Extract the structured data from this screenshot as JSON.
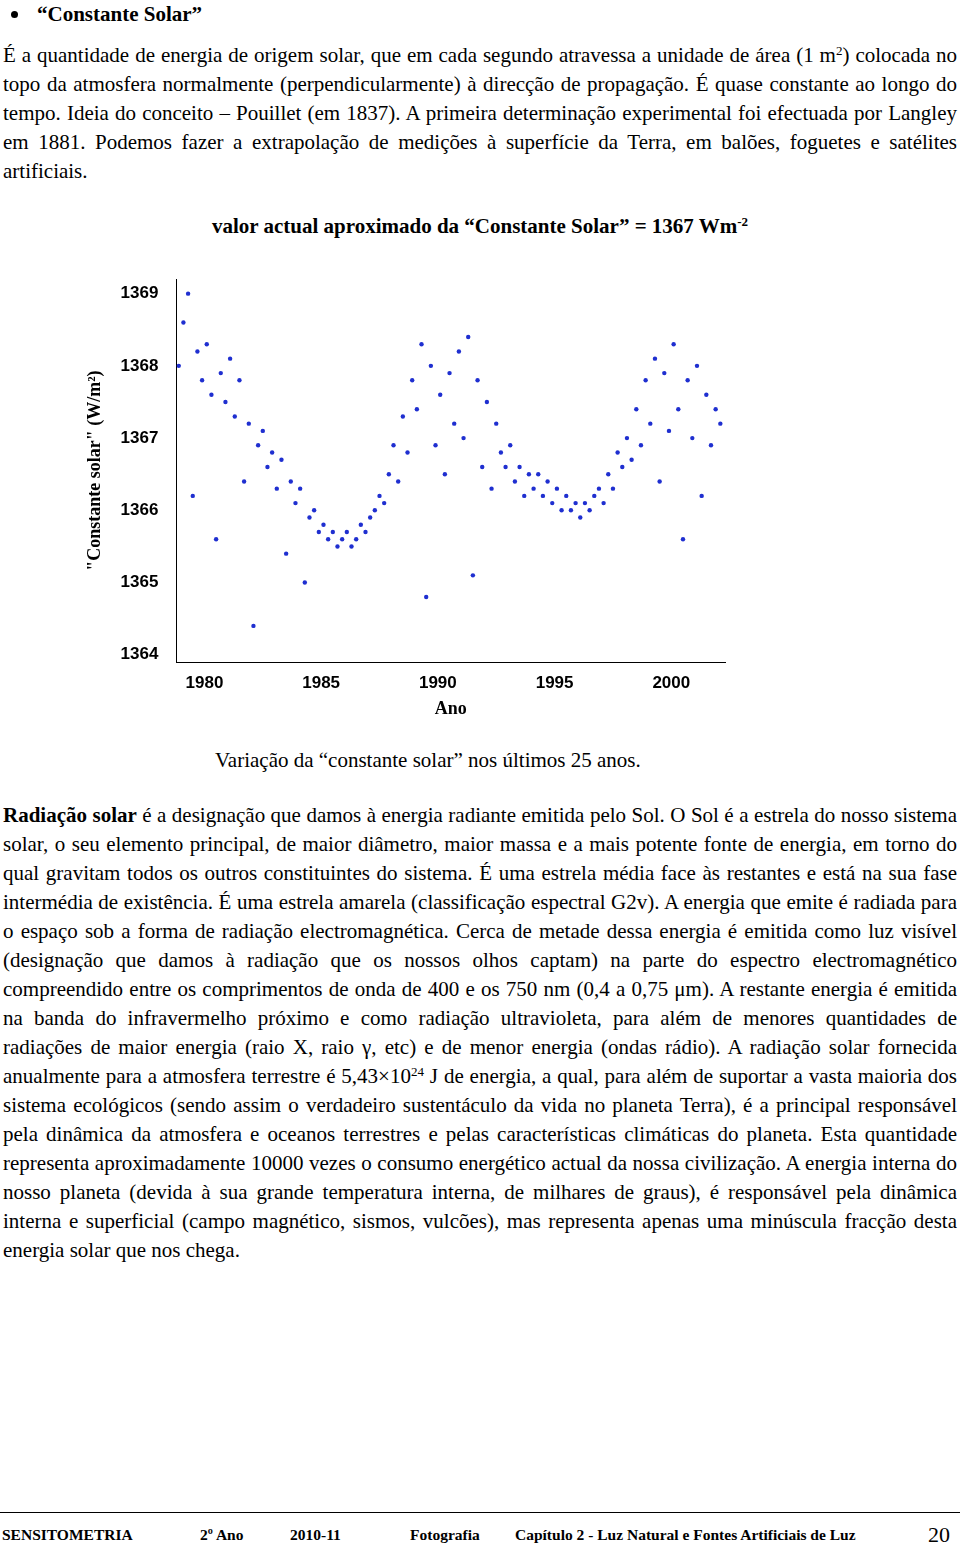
{
  "header": {
    "title": "“Constante Solar”"
  },
  "intro": [
    {
      "text": "É a quantidade de energia de origem solar, que em cada segundo atravessa a unidade de área (1 m"
    },
    {
      "text": "2",
      "sup": true
    },
    {
      "text": ") colocada no topo da atmosfera normalmente (perpendicularmente) à direcção de propagação. É quase constante ao longo do tempo. Ideia do conceito – Pouillet (em 1837). A primeira determinação experimental foi efectuada por Langley em 1881. Podemos fazer a extrapolação de medições à superfície da Terra, em balões, foguetes e satélites artificiais."
    }
  ],
  "highlight": [
    {
      "text": "valor actual aproximado da “Constante Solar” = 1367 Wm"
    },
    {
      "text": "-2",
      "sup": true
    }
  ],
  "chart_data": {
    "type": "scatter",
    "x_label": "Ano",
    "y_label": "\"Constante solar\" (W/m²)",
    "color": "#1f2fd0",
    "marker": "circle",
    "grid": false,
    "xlim": [
      1978.8,
      2002.3
    ],
    "ylim": [
      1363.9,
      1369.2
    ],
    "xticks": [
      1980,
      1985,
      1990,
      1995,
      2000
    ],
    "yticks": [
      1364,
      1365,
      1366,
      1367,
      1368,
      1369
    ],
    "x": [
      1978.9,
      1979.1,
      1979.3,
      1979.5,
      1979.7,
      1979.9,
      1980.1,
      1980.3,
      1980.5,
      1980.7,
      1980.9,
      1981.1,
      1981.3,
      1981.5,
      1981.7,
      1981.9,
      1982.1,
      1982.3,
      1982.5,
      1982.7,
      1982.9,
      1983.1,
      1983.3,
      1983.5,
      1983.7,
      1983.9,
      1984.1,
      1984.3,
      1984.5,
      1984.7,
      1984.9,
      1985.1,
      1985.3,
      1985.5,
      1985.7,
      1985.9,
      1986.1,
      1986.3,
      1986.5,
      1986.7,
      1986.9,
      1987.1,
      1987.3,
      1987.5,
      1987.7,
      1987.9,
      1988.1,
      1988.3,
      1988.5,
      1988.7,
      1988.9,
      1989.1,
      1989.3,
      1989.5,
      1989.7,
      1989.9,
      1990.1,
      1990.3,
      1990.5,
      1990.7,
      1990.9,
      1991.1,
      1991.3,
      1991.5,
      1991.7,
      1991.9,
      1992.1,
      1992.3,
      1992.5,
      1992.7,
      1992.9,
      1993.1,
      1993.3,
      1993.5,
      1993.7,
      1993.9,
      1994.1,
      1994.3,
      1994.5,
      1994.7,
      1994.9,
      1995.1,
      1995.3,
      1995.5,
      1995.7,
      1995.9,
      1996.1,
      1996.3,
      1996.5,
      1996.7,
      1996.9,
      1997.1,
      1997.3,
      1997.5,
      1997.7,
      1997.9,
      1998.1,
      1998.3,
      1998.5,
      1998.7,
      1998.9,
      1999.1,
      1999.3,
      1999.5,
      1999.7,
      1999.9,
      2000.1,
      2000.3,
      2000.5,
      2000.7,
      2000.9,
      2001.1,
      2001.3,
      2001.5,
      2001.7,
      2001.9,
      2002.1
    ],
    "values": [
      1368.0,
      1368.6,
      1369.0,
      1366.2,
      1368.2,
      1367.8,
      1368.3,
      1367.6,
      1365.6,
      1367.9,
      1367.5,
      1368.1,
      1367.3,
      1367.8,
      1366.4,
      1367.2,
      1364.4,
      1366.9,
      1367.1,
      1366.6,
      1366.8,
      1366.3,
      1366.7,
      1365.4,
      1366.4,
      1366.1,
      1366.3,
      1365.0,
      1365.9,
      1366.0,
      1365.7,
      1365.8,
      1365.6,
      1365.7,
      1365.5,
      1365.6,
      1365.7,
      1365.5,
      1365.6,
      1365.8,
      1365.7,
      1365.9,
      1366.0,
      1366.2,
      1366.1,
      1366.5,
      1366.9,
      1366.4,
      1367.3,
      1366.8,
      1367.8,
      1367.4,
      1368.3,
      1364.8,
      1368.0,
      1366.9,
      1367.6,
      1366.5,
      1367.9,
      1367.2,
      1368.2,
      1367.0,
      1368.4,
      1365.1,
      1367.8,
      1366.6,
      1367.5,
      1366.3,
      1367.2,
      1366.8,
      1366.6,
      1366.9,
      1366.4,
      1366.6,
      1366.2,
      1366.5,
      1366.3,
      1366.5,
      1366.2,
      1366.4,
      1366.1,
      1366.3,
      1366.0,
      1366.2,
      1366.0,
      1366.1,
      1365.9,
      1366.1,
      1366.0,
      1366.2,
      1366.3,
      1366.1,
      1366.5,
      1366.3,
      1366.8,
      1366.6,
      1367.0,
      1366.7,
      1367.4,
      1366.9,
      1367.8,
      1367.2,
      1368.1,
      1366.4,
      1367.9,
      1367.1,
      1368.3,
      1367.4,
      1365.6,
      1367.8,
      1367.0,
      1368.0,
      1366.2,
      1367.6,
      1366.9,
      1367.4,
      1367.2
    ]
  },
  "caption": "Variação da “constante solar” nos últimos 25 anos.",
  "body": [
    {
      "text": "Radiação solar",
      "bold": true
    },
    {
      "text": " é a designação que damos à energia radiante emitida pelo Sol. O Sol é a estrela do nosso sistema solar, o seu elemento principal, de maior diâmetro, maior massa e a mais potente fonte de energia, em torno do qual gravitam todos os outros constituintes do sistema. É uma estrela média face às restantes e está na sua fase intermédia de existência. É uma estrela amarela (classificação espectral G2v). A energia que emite é radiada para o espaço sob a forma de radiação electromagnética. Cerca de metade dessa energia é emitida como luz visível (designação que damos à radiação que os nossos olhos captam) na parte do espectro electromagnético compreendido entre os comprimentos de onda de 400 e os 750 nm (0,4 a 0,75 μm). A restante energia é emitida na banda do infravermelho próximo e como radiação ultravioleta, para além de menores quantidades de radiações de maior energia (raio X, raio γ, etc) e de menor energia (ondas rádio). A radiação solar fornecida anualmente para a atmosfera terrestre é 5,43×10"
    },
    {
      "text": "24",
      "sup": true
    },
    {
      "text": " J de energia, a qual, para além de suportar a vasta maioria dos sistema ecológicos (sendo assim o verdadeiro sustentáculo da vida no planeta Terra), é a principal responsável pela dinâmica da atmosfera e oceanos terrestres e pelas características climáticas do planeta. Esta quantidade representa aproximadamente 10000 vezes o consumo energético actual da nossa civilização. A energia interna do nosso planeta (devida à sua grande temperatura interna, de milhares de graus), é responsável pela dinâmica interna e superficial (campo magnético, sismos, vulcões), mas representa apenas uma minúscula fracção desta energia solar que nos chega."
    }
  ],
  "footer": [
    "SENSITOMETRIA",
    "2º Ano",
    "2010-11",
    "Fotografia",
    "Capítulo 2 - Luz Natural e Fontes Artificiais de Luz",
    "20"
  ]
}
